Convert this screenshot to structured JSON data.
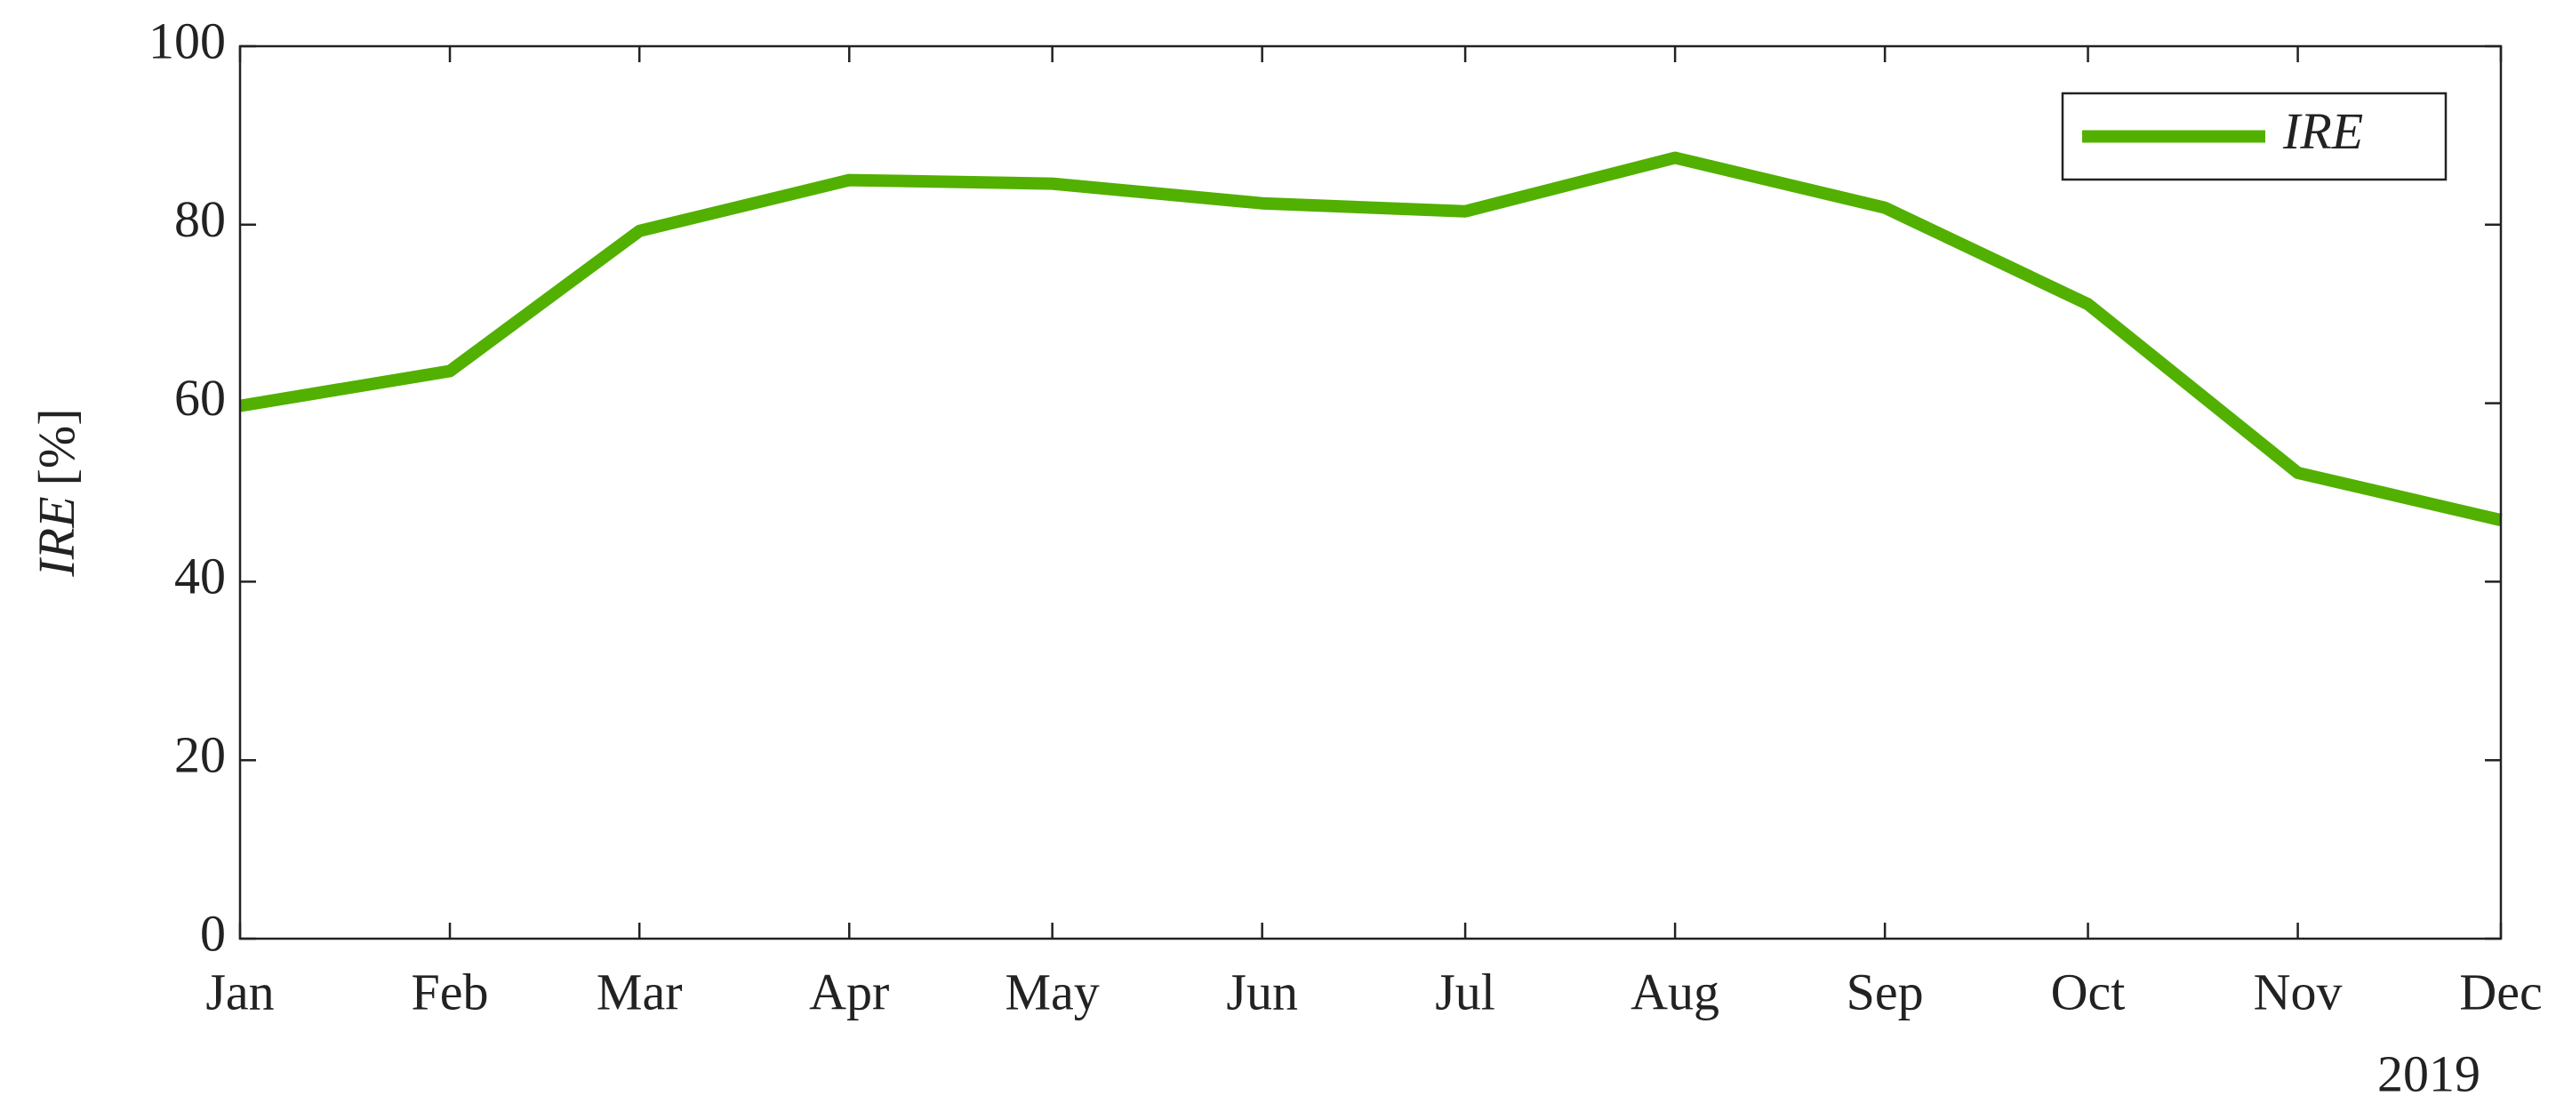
{
  "chart_data": {
    "type": "line",
    "x": [
      "2019-01",
      "2019-02",
      "2019-03",
      "2019-04",
      "2019-05",
      "2019-06",
      "2019-07",
      "2019-08",
      "2019-09",
      "2019-10",
      "2019-11",
      "2019-12"
    ],
    "series": [
      {
        "name": "IRE",
        "color": "#52b000",
        "values": [
          59.7,
          63.6,
          79.3,
          85.0,
          84.6,
          82.4,
          81.5,
          87.5,
          81.9,
          71.1,
          52.2,
          46.9
        ]
      }
    ],
    "xlim": [
      "2019-01",
      "2019-12"
    ],
    "xticks": [
      {
        "value": "2019-01",
        "label": "Jan"
      },
      {
        "value": "2019-02",
        "label": "Feb"
      },
      {
        "value": "2019-03",
        "label": "Mar"
      },
      {
        "value": "2019-04",
        "label": "Apr"
      },
      {
        "value": "2019-05",
        "label": "May"
      },
      {
        "value": "2019-06",
        "label": "Jun"
      },
      {
        "value": "2019-07",
        "label": "Jul"
      },
      {
        "value": "2019-08",
        "label": "Aug"
      },
      {
        "value": "2019-09",
        "label": "Sep"
      },
      {
        "value": "2019-10",
        "label": "Oct"
      },
      {
        "value": "2019-11",
        "label": "Nov"
      },
      {
        "value": "2019-12",
        "label": "Dec"
      }
    ],
    "x_secondary_label": "2019",
    "ylim": [
      0,
      100
    ],
    "yticks": [
      0,
      20,
      40,
      60,
      80,
      100
    ],
    "y_label": {
      "variable": "IRE",
      "unit": "[%]"
    },
    "grid": false,
    "legend": "top-right"
  }
}
